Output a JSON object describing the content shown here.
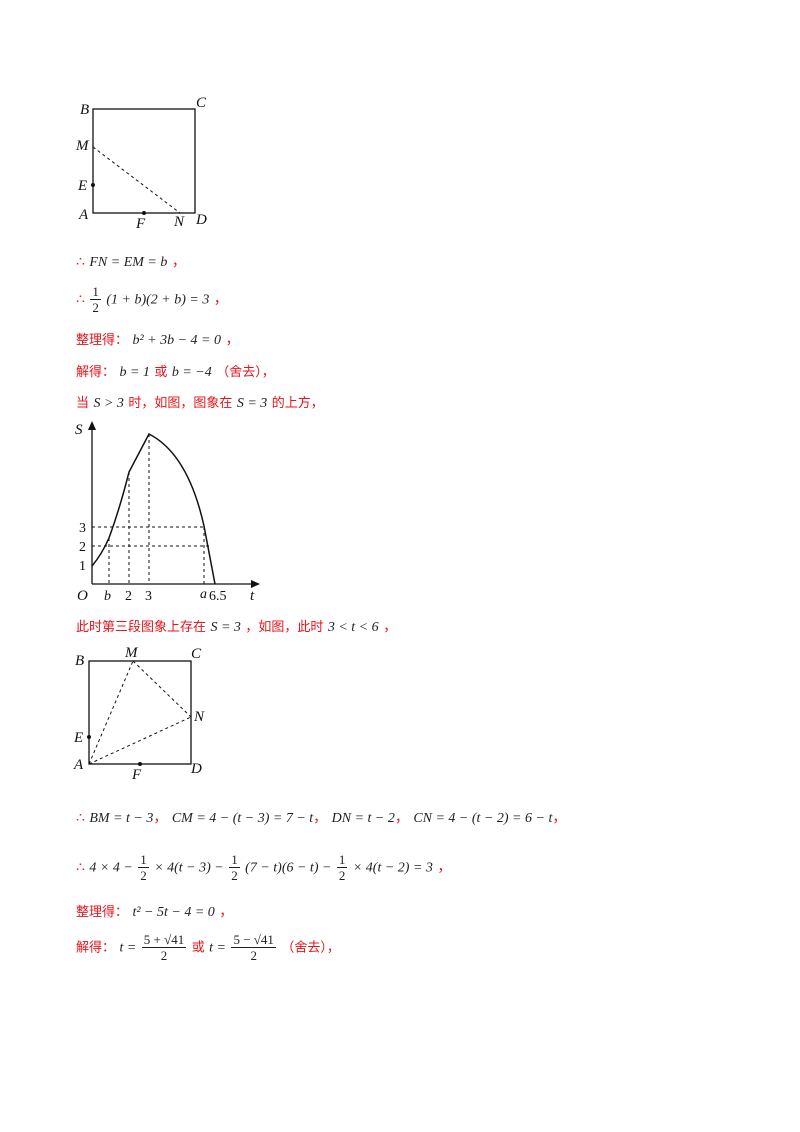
{
  "figure1": {
    "labels": {
      "B": "B",
      "C": "C",
      "M": "M",
      "E": "E",
      "A": "A",
      "F": "F",
      "N": "N",
      "D": "D"
    }
  },
  "lines": {
    "l1": {
      "therefore": "∴",
      "expr": "FN = EM = b",
      "tail": "，"
    },
    "l2": {
      "therefore": "∴",
      "frac_num": "1",
      "frac_den": "2",
      "expr": "(1 + b)(2 + b) = 3",
      "tail": "，"
    },
    "l3": {
      "prefix": "整理得：",
      "expr": "b² + 3b − 4 = 0",
      "tail": "，"
    },
    "l4": {
      "prefix": "解得：",
      "expr1": "b = 1",
      "mid": "或",
      "expr2": "b = −4",
      "tail": "（舍去），"
    },
    "l5": {
      "t1": "当",
      "e1": "S > 3",
      "t2": "时，如图，图象在",
      "e2": "S = 3",
      "t3": "的上方，"
    }
  },
  "graph": {
    "axis_labels": {
      "y": "S",
      "x": "t",
      "origin": "O"
    },
    "y_ticks": [
      "1",
      "2",
      "3"
    ],
    "x_ticks": [
      "b",
      "2",
      "3",
      "a",
      "6.5"
    ]
  },
  "lines2": {
    "l6": {
      "t1": "此时第三段图象上存在",
      "e1": "S = 3",
      "t2": "，如图，此时",
      "e2": "3 < t < 6",
      "tail": "，"
    }
  },
  "figure2": {
    "labels": {
      "B": "B",
      "M": "M",
      "C": "C",
      "N": "N",
      "E": "E",
      "A": "A",
      "F": "F",
      "D": "D"
    }
  },
  "lines3": {
    "l7": {
      "therefore": "∴",
      "e1": "BM = t − 3",
      "e2": "CM = 4 − (t − 3) = 7 − t",
      "e3": "DN = t − 2",
      "e4": "CN = 4 − (t − 2) = 6 − t",
      "sep": "，"
    },
    "l8": {
      "therefore": "∴",
      "a": "4 × 4 −",
      "f1n": "1",
      "f1d": "2",
      "b": "× 4(t − 3) −",
      "f2n": "1",
      "f2d": "2",
      "c": "(7 − t)(6 − t) −",
      "f3n": "1",
      "f3d": "2",
      "d": "× 4(t − 2) = 3",
      "tail": "，"
    },
    "l9": {
      "prefix": "整理得：",
      "expr": "t² − 5t − 4 = 0",
      "tail": "，"
    },
    "l10": {
      "prefix": "解得：",
      "lhs1": "t =",
      "f1n": "5 + √41",
      "f1d": "2",
      "mid": "或",
      "lhs2": "t =",
      "f2n": "5 − √41",
      "f2d": "2",
      "tail": "（舍去），"
    }
  }
}
